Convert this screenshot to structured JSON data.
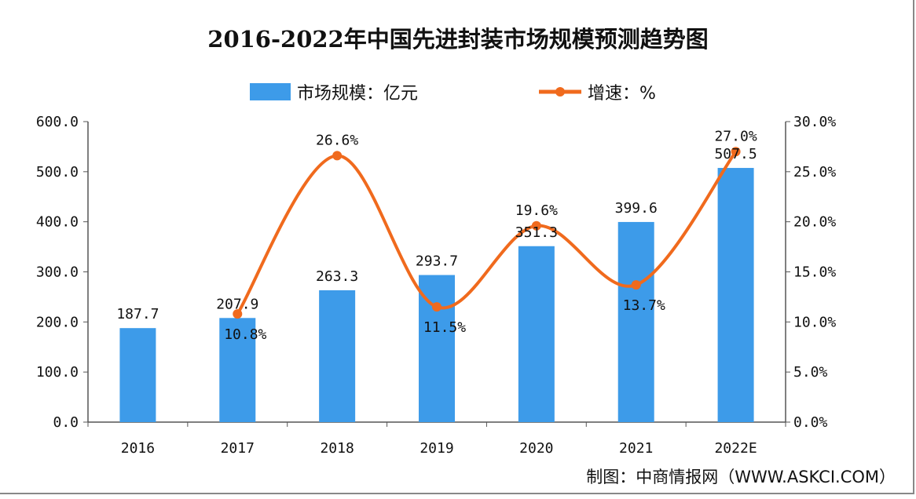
{
  "chart_data": {
    "type": "bar+line",
    "title": "2016-2022年中国先进封装市场规模预测趋势图",
    "categories": [
      "2016",
      "2017",
      "2018",
      "2019",
      "2020",
      "2021",
      "2022E"
    ],
    "series": [
      {
        "name": "市场规模：亿元",
        "type": "bar",
        "axis": "left",
        "color": "#3d9be9",
        "values": [
          187.7,
          207.9,
          263.3,
          293.7,
          351.3,
          399.6,
          507.5
        ],
        "labels": [
          "187.7",
          "207.9",
          "263.3",
          "293.7",
          "351.3",
          "399.6",
          "507.5"
        ]
      },
      {
        "name": "增速：%",
        "type": "line",
        "axis": "right",
        "color": "#f06a1d",
        "values": [
          null,
          10.8,
          26.6,
          11.5,
          19.6,
          13.7,
          27.0
        ],
        "labels": [
          "",
          "10.8%",
          "26.6%",
          "11.5%",
          "19.6%",
          "13.7%",
          "27.0%"
        ]
      }
    ],
    "left_axis": {
      "ylim": [
        0,
        600
      ],
      "ticks": [
        "0.0",
        "100.0",
        "200.0",
        "300.0",
        "400.0",
        "500.0",
        "600.0"
      ]
    },
    "right_axis": {
      "ylim": [
        0,
        30
      ],
      "ticks": [
        "0.0%",
        "5.0%",
        "10.0%",
        "15.0%",
        "20.0%",
        "25.0%",
        "30.0%"
      ]
    },
    "legend_placement": "top-center",
    "grid": false
  },
  "source": "制图：中商情报网（WWW.ASKCI.COM）"
}
